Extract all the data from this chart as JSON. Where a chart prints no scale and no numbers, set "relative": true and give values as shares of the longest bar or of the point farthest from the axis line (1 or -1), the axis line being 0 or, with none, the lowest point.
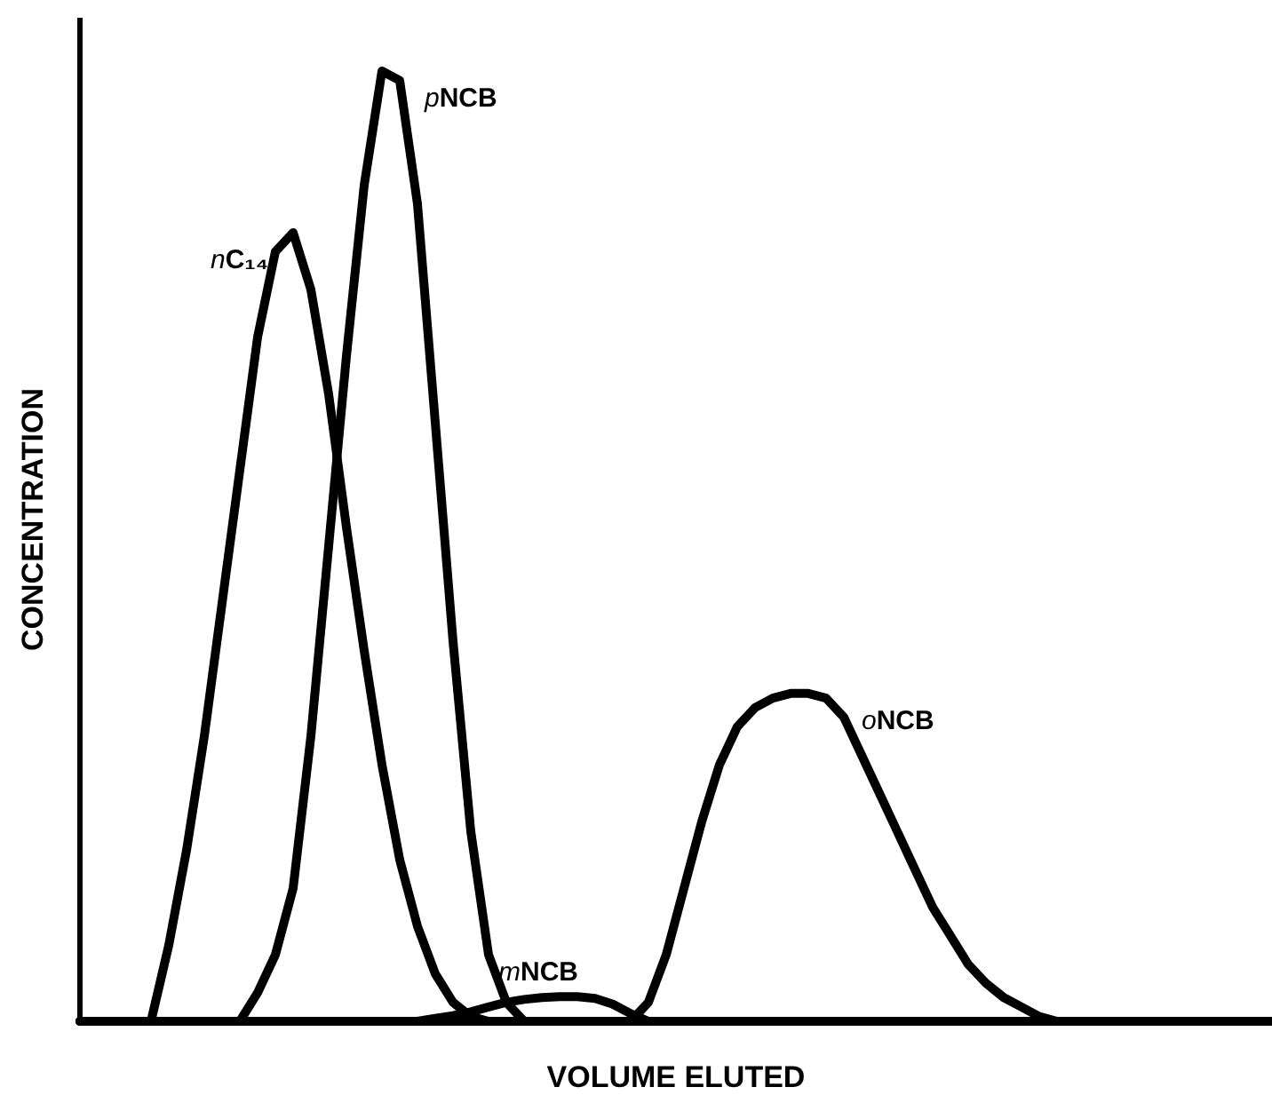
{
  "chart_data": {
    "type": "line",
    "relative": true,
    "xlabel": "VOLUME ELUTED",
    "ylabel": "CONCENTRATION",
    "categories": [
      null,
      null,
      null,
      null,
      null,
      null,
      null,
      null,
      null,
      null,
      null,
      null,
      null,
      null,
      null,
      null,
      null,
      null,
      null,
      null,
      null,
      null,
      null,
      null,
      null,
      null,
      null,
      null,
      null,
      null,
      null,
      null,
      null,
      null,
      null,
      null,
      null,
      null,
      null,
      null,
      null,
      null,
      null,
      null,
      null,
      null,
      null,
      null,
      null,
      null,
      null,
      null,
      null,
      null,
      null,
      null,
      null,
      null,
      null,
      null,
      null,
      null,
      null,
      null,
      null,
      null,
      null,
      null
    ],
    "series": [
      {
        "name": "nC₁₄",
        "color": "#000000",
        "values": [
          0,
          0,
          0,
          0,
          0,
          0.08,
          0.18,
          0.3,
          0.44,
          0.58,
          0.72,
          0.81,
          0.83,
          0.77,
          0.66,
          0.52,
          0.39,
          0.27,
          0.17,
          0.1,
          0.05,
          0.02,
          0.005,
          0,
          0,
          0,
          0,
          0,
          0,
          0,
          0,
          0,
          0,
          0,
          0,
          0,
          0,
          0,
          0,
          0,
          0,
          0,
          0,
          0,
          0,
          0,
          0,
          0,
          0,
          0,
          0,
          0,
          0,
          0,
          0,
          0,
          0,
          0,
          0,
          0,
          0,
          0,
          0,
          0,
          0,
          0,
          0,
          0
        ]
      },
      {
        "name": "pNCB",
        "color": "#000000",
        "values": [
          0,
          0,
          0,
          0,
          0,
          0,
          0,
          0,
          0,
          0,
          0.03,
          0.07,
          0.14,
          0.3,
          0.5,
          0.7,
          0.88,
          1,
          0.99,
          0.86,
          0.63,
          0.4,
          0.2,
          0.07,
          0.02,
          0,
          0,
          0,
          0,
          0,
          0,
          0,
          0,
          0,
          0,
          0,
          0,
          0,
          0,
          0,
          0,
          0,
          0,
          0,
          0,
          0,
          0,
          0,
          0,
          0,
          0,
          0,
          0,
          0,
          0,
          0,
          0,
          0,
          0,
          0,
          0,
          0,
          0,
          0,
          0,
          0,
          0,
          0
        ]
      },
      {
        "name": "mNCB",
        "color": "#000000",
        "values": [
          0,
          0,
          0,
          0,
          0,
          0,
          0,
          0,
          0,
          0,
          0,
          0,
          0,
          0,
          0,
          0,
          0,
          0,
          0,
          0,
          0.003,
          0.006,
          0.01,
          0.015,
          0.02,
          0.023,
          0.025,
          0.026,
          0.026,
          0.024,
          0.018,
          0.008,
          0,
          0,
          0,
          0,
          0,
          0,
          0,
          0,
          0,
          0,
          0,
          0,
          0,
          0,
          0,
          0,
          0,
          0,
          0,
          0,
          0,
          0,
          0,
          0,
          0,
          0,
          0,
          0,
          0,
          0,
          0,
          0,
          0,
          0,
          0,
          0
        ]
      },
      {
        "name": "oNCB",
        "color": "#000000",
        "values": [
          0,
          0,
          0,
          0,
          0,
          0,
          0,
          0,
          0,
          0,
          0,
          0,
          0,
          0,
          0,
          0,
          0,
          0,
          0,
          0,
          0,
          0,
          0,
          0,
          0,
          0,
          0,
          0,
          0,
          0,
          0,
          0,
          0.02,
          0.07,
          0.14,
          0.21,
          0.27,
          0.31,
          0.33,
          0.34,
          0.345,
          0.345,
          0.34,
          0.32,
          0.28,
          0.24,
          0.2,
          0.16,
          0.12,
          0.09,
          0.06,
          0.04,
          0.025,
          0.015,
          0.005,
          0,
          0,
          0,
          0,
          0,
          0,
          0,
          0,
          0,
          0,
          0,
          0,
          0
        ]
      }
    ]
  }
}
